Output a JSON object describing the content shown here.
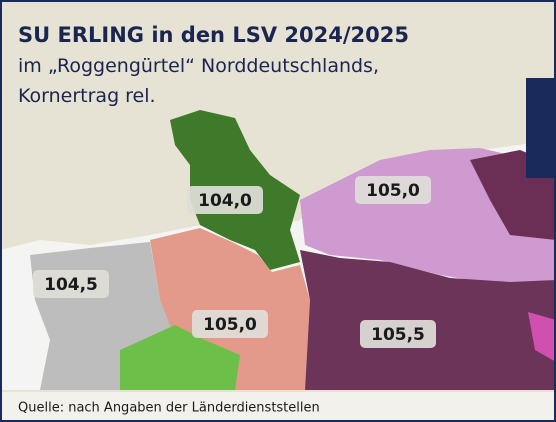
{
  "header": {
    "title": "SU ERLING in den LSV 2024/2025",
    "subtitle_lines": [
      "im „Roggengürtel“ Norddeutschlands,",
      "Kornertrag rel."
    ]
  },
  "regions": [
    {
      "label": "104,0"
    },
    {
      "label": "105,0"
    },
    {
      "label": "104,5"
    },
    {
      "label": "105,0"
    },
    {
      "label": "105,5"
    }
  ],
  "footer": {
    "source": "Quelle: nach Angaben der Länderdienststellen"
  }
}
